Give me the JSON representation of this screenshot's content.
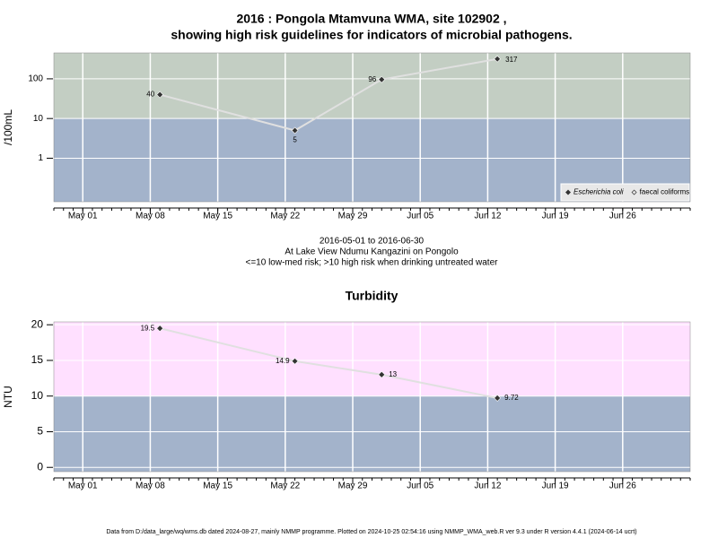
{
  "chart_data": [
    {
      "type": "line",
      "title": "2016 : Pongola Mtamvuna WMA, site 102902 ,",
      "subtitle": "showing high risk guidelines for indicators of microbial pathogens.",
      "ylabel": "/100mL",
      "notes": [
        "2016-05-01 to 2016-06-30",
        "At Lake View Ndumu Kangazini on Pongolo",
        "<=10 low-med risk; >10 high risk when drinking untreated water"
      ],
      "x": [
        "2016-05-09",
        "2016-05-23",
        "2016-06-01",
        "2016-06-13"
      ],
      "series": [
        {
          "name": "Escherichia coli",
          "color": "#333333",
          "line_color": "#e0e0e0",
          "values": [
            40,
            5,
            96,
            317
          ]
        },
        {
          "name": "faecal coliforms",
          "color": "#333333",
          "line_color": "#e0e0e0",
          "values": [
            null,
            null,
            null,
            null
          ]
        }
      ],
      "xlim": [
        "2016-04-28",
        "2016-07-03"
      ],
      "xticks": [
        {
          "value": "2016-05-01",
          "label": "May 01"
        },
        {
          "value": "2016-05-08",
          "label": "May 08"
        },
        {
          "value": "2016-05-15",
          "label": "May 15"
        },
        {
          "value": "2016-05-22",
          "label": "May 22"
        },
        {
          "value": "2016-05-29",
          "label": "May 29"
        },
        {
          "value": "2016-06-05",
          "label": "Jun 05"
        },
        {
          "value": "2016-06-12",
          "label": "Jun 12"
        },
        {
          "value": "2016-06-19",
          "label": "Jun 19"
        },
        {
          "value": "2016-06-26",
          "label": "Jun 26"
        }
      ],
      "ylim": [
        0.08,
        450
      ],
      "yticks": [
        1,
        10,
        100
      ],
      "log_y": true,
      "grid": true,
      "threshold": 10,
      "above_color": "#c3cec3",
      "below_color": "#a3b3cb",
      "legend": "bottom-right"
    },
    {
      "type": "line",
      "title": "Turbidity",
      "ylabel": "NTU",
      "x": [
        "2016-05-09",
        "2016-05-23",
        "2016-06-01",
        "2016-06-13"
      ],
      "series": [
        {
          "name": "Turbidity",
          "color": "#333333",
          "line_color": "#e0e0e0",
          "values": [
            19.5,
            14.9,
            13,
            9.72
          ]
        }
      ],
      "xlim": [
        "2016-04-28",
        "2016-07-03"
      ],
      "xticks": [
        {
          "value": "2016-05-01",
          "label": "May 01"
        },
        {
          "value": "2016-05-08",
          "label": "May 08"
        },
        {
          "value": "2016-05-15",
          "label": "May 15"
        },
        {
          "value": "2016-05-22",
          "label": "May 22"
        },
        {
          "value": "2016-05-29",
          "label": "May 29"
        },
        {
          "value": "2016-06-05",
          "label": "Jun 05"
        },
        {
          "value": "2016-06-12",
          "label": "Jun 12"
        },
        {
          "value": "2016-06-19",
          "label": "Jun 19"
        },
        {
          "value": "2016-06-26",
          "label": "Jun 26"
        }
      ],
      "ylim": [
        -0.6,
        20.4
      ],
      "yticks": [
        0,
        5,
        10,
        15,
        20
      ],
      "log_y": false,
      "grid": true,
      "threshold": 10,
      "above_color": "#ffe0ff",
      "below_color": "#a3b3cb"
    }
  ],
  "footer": "Data from D:/data_large/wq/wms.db dated 2024-08-27, mainly NMMP programme. Plotted on 2024-10-25 02:54:16 using NMMP_WMA_web.R ver 9.3 under R version 4.4.1 (2024-06-14 ucrt)"
}
